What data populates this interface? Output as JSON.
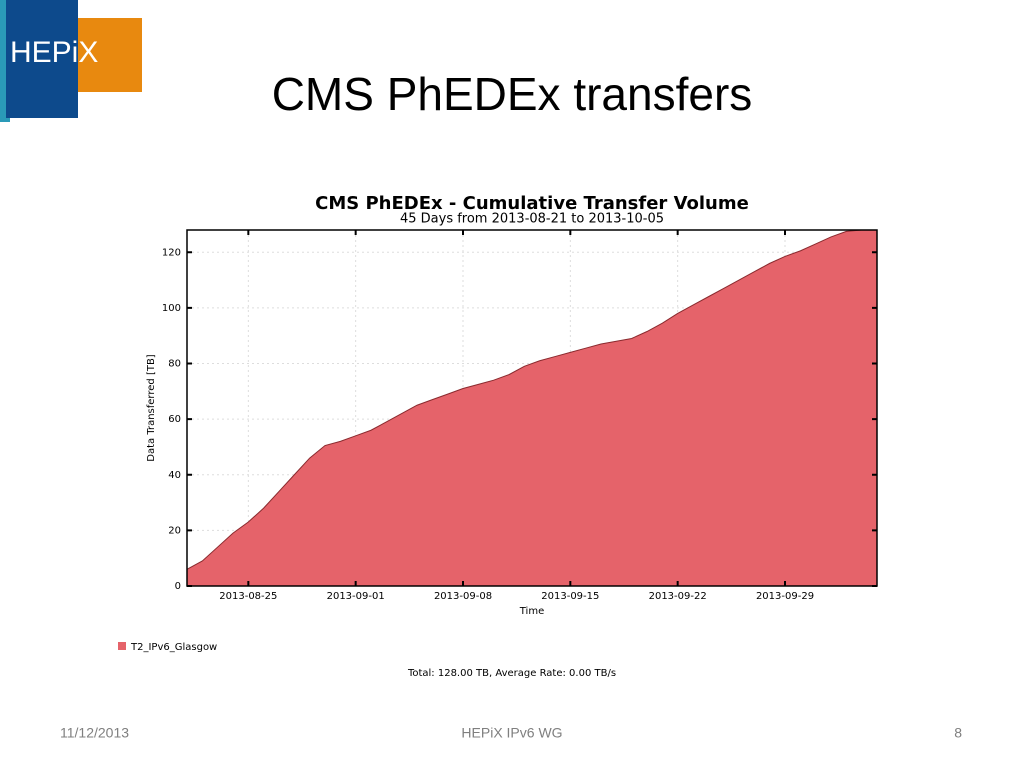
{
  "logo": "HEPiX",
  "title": "CMS PhEDEx transfers",
  "footer": {
    "date": "11/12/2013",
    "center": "HEPiX IPv6 WG",
    "page": "8"
  },
  "chart_data": {
    "type": "area",
    "title": "CMS PhEDEx - Cumulative Transfer Volume",
    "subtitle": "45 Days from 2013-08-21 to 2013-10-05",
    "x_label": "Time",
    "y_label": "Data Transferred [TB]",
    "note": "Total: 128.00 TB, Average Rate: 0.00 TB/s",
    "x": [
      "2013-08-21",
      "2013-08-22",
      "2013-08-23",
      "2013-08-24",
      "2013-08-25",
      "2013-08-26",
      "2013-08-27",
      "2013-08-28",
      "2013-08-29",
      "2013-08-30",
      "2013-08-31",
      "2013-09-01",
      "2013-09-02",
      "2013-09-03",
      "2013-09-04",
      "2013-09-05",
      "2013-09-06",
      "2013-09-07",
      "2013-09-08",
      "2013-09-09",
      "2013-09-10",
      "2013-09-11",
      "2013-09-12",
      "2013-09-13",
      "2013-09-14",
      "2013-09-15",
      "2013-09-16",
      "2013-09-17",
      "2013-09-18",
      "2013-09-19",
      "2013-09-20",
      "2013-09-21",
      "2013-09-22",
      "2013-09-23",
      "2013-09-24",
      "2013-09-25",
      "2013-09-26",
      "2013-09-27",
      "2013-09-28",
      "2013-09-29",
      "2013-09-30",
      "2013-10-01",
      "2013-10-02",
      "2013-10-03",
      "2013-10-04",
      "2013-10-05"
    ],
    "series": [
      {
        "name": "T2_IPv6_Glasgow",
        "color": "#e5636a",
        "values": [
          6,
          9,
          14,
          19,
          23,
          28,
          34,
          40,
          46,
          50.5,
          52,
          54,
          56,
          59,
          62,
          65,
          67,
          69,
          71,
          72.5,
          74,
          76,
          79,
          81,
          82.5,
          84,
          85.5,
          87,
          88,
          89,
          91.5,
          94.5,
          98,
          101,
          104,
          107,
          110,
          113,
          116,
          118.5,
          120.5,
          123,
          125.5,
          127.5,
          128,
          128
        ]
      }
    ],
    "xlim": [
      "2013-08-21",
      "2013-10-05"
    ],
    "xticks": [
      "2013-08-25",
      "2013-09-01",
      "2013-09-08",
      "2013-09-15",
      "2013-09-22",
      "2013-09-29"
    ],
    "ylim": [
      0,
      128
    ],
    "yticks": [
      0,
      20,
      40,
      60,
      80,
      100,
      120
    ],
    "grid": true
  }
}
